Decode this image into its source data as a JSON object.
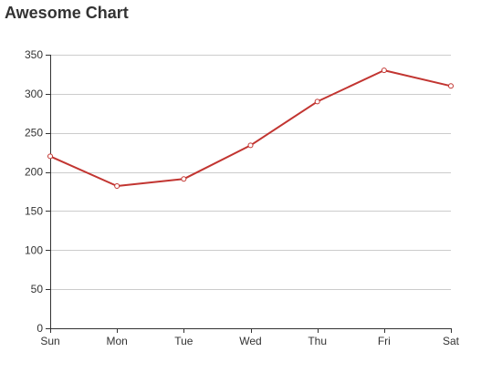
{
  "chart_data": {
    "type": "line",
    "title": "Awesome Chart",
    "categories": [
      "Sun",
      "Mon",
      "Tue",
      "Wed",
      "Thu",
      "Fri",
      "Sat"
    ],
    "series": [
      {
        "values": [
          220,
          182,
          191,
          234,
          290,
          330,
          310
        ]
      }
    ],
    "ylim": [
      0,
      350
    ],
    "yticks": [
      0,
      50,
      100,
      150,
      200,
      250,
      300,
      350
    ],
    "grid": true,
    "colors": {
      "line": "#c23531",
      "grid": "#cccccc",
      "axis": "#333333"
    }
  }
}
